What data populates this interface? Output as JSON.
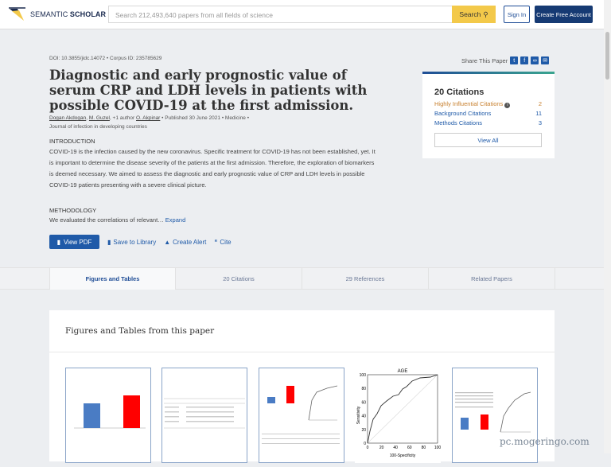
{
  "header": {
    "logo_text_1": "SEMANTIC",
    "logo_text_2": "SCHOLAR",
    "search_placeholder": "Search 212,493,640 papers from all fields of science",
    "search_button": "Search",
    "sign_in": "Sign In",
    "create_account": "Create Free Account"
  },
  "paper": {
    "doi": "DOI: 10.3855/jidc.14072",
    "corpus": "Corpus ID: 235785629",
    "title": "Diagnostic and early prognostic value of serum CRP and LDH levels in patients with possible COVID-19 at the first admission.",
    "authors": [
      "Dogan Akdogan",
      "M. Guzel",
      "O. Akpinar"
    ],
    "more_authors": "+1 author",
    "published": "Published 30 June 2021",
    "field": "Medicine",
    "journal": "Journal of infection in developing countries",
    "intro_heading": "INTRODUCTION",
    "intro_text": "COVID-19 is the infection caused by the new coronavirus. Specific treatment for COVID-19 has not been established, yet. It is important to determine the disease severity of the patients at the first admission. Therefore, the exploration of biomarkers is deemed necessary. We aimed to assess the diagnostic and early prognostic value of CRP and LDH levels in possible COVID-19 patients presenting with a severe clinical picture.",
    "method_heading": "METHODOLOGY",
    "method_text": "We evaluated the correlations of relevant…",
    "expand": "Expand"
  },
  "actions": {
    "view_pdf": "View PDF",
    "save": "Save to Library",
    "alert": "Create Alert",
    "cite": "Cite"
  },
  "share": {
    "label": "Share This Paper",
    "icons": [
      "twitter-icon",
      "facebook-icon",
      "link-icon",
      "email-icon"
    ]
  },
  "citations": {
    "title": "20 Citations",
    "rows": [
      {
        "label": "Highly Influential Citations",
        "count": "2",
        "color": "#c77f2d"
      },
      {
        "label": "Background Citations",
        "count": "11",
        "color": "#1f5aa8"
      },
      {
        "label": "Methods Citations",
        "count": "3",
        "color": "#1f5aa8"
      }
    ],
    "view_all": "View All"
  },
  "tabs": [
    {
      "label": "Figures and Tables",
      "active": true
    },
    {
      "label": "20 Citations"
    },
    {
      "label": "29 References"
    },
    {
      "label": "Related Papers"
    }
  ],
  "figures": {
    "title": "Figures and Tables from this paper",
    "roc_title": "AGE",
    "roc_ylabel": "Sensitivity",
    "roc_xlabel": "100-Specificity",
    "roc_ticks": [
      "0",
      "20",
      "40",
      "60",
      "80",
      "100"
    ]
  },
  "watermark": "pc.mogeringo.com"
}
